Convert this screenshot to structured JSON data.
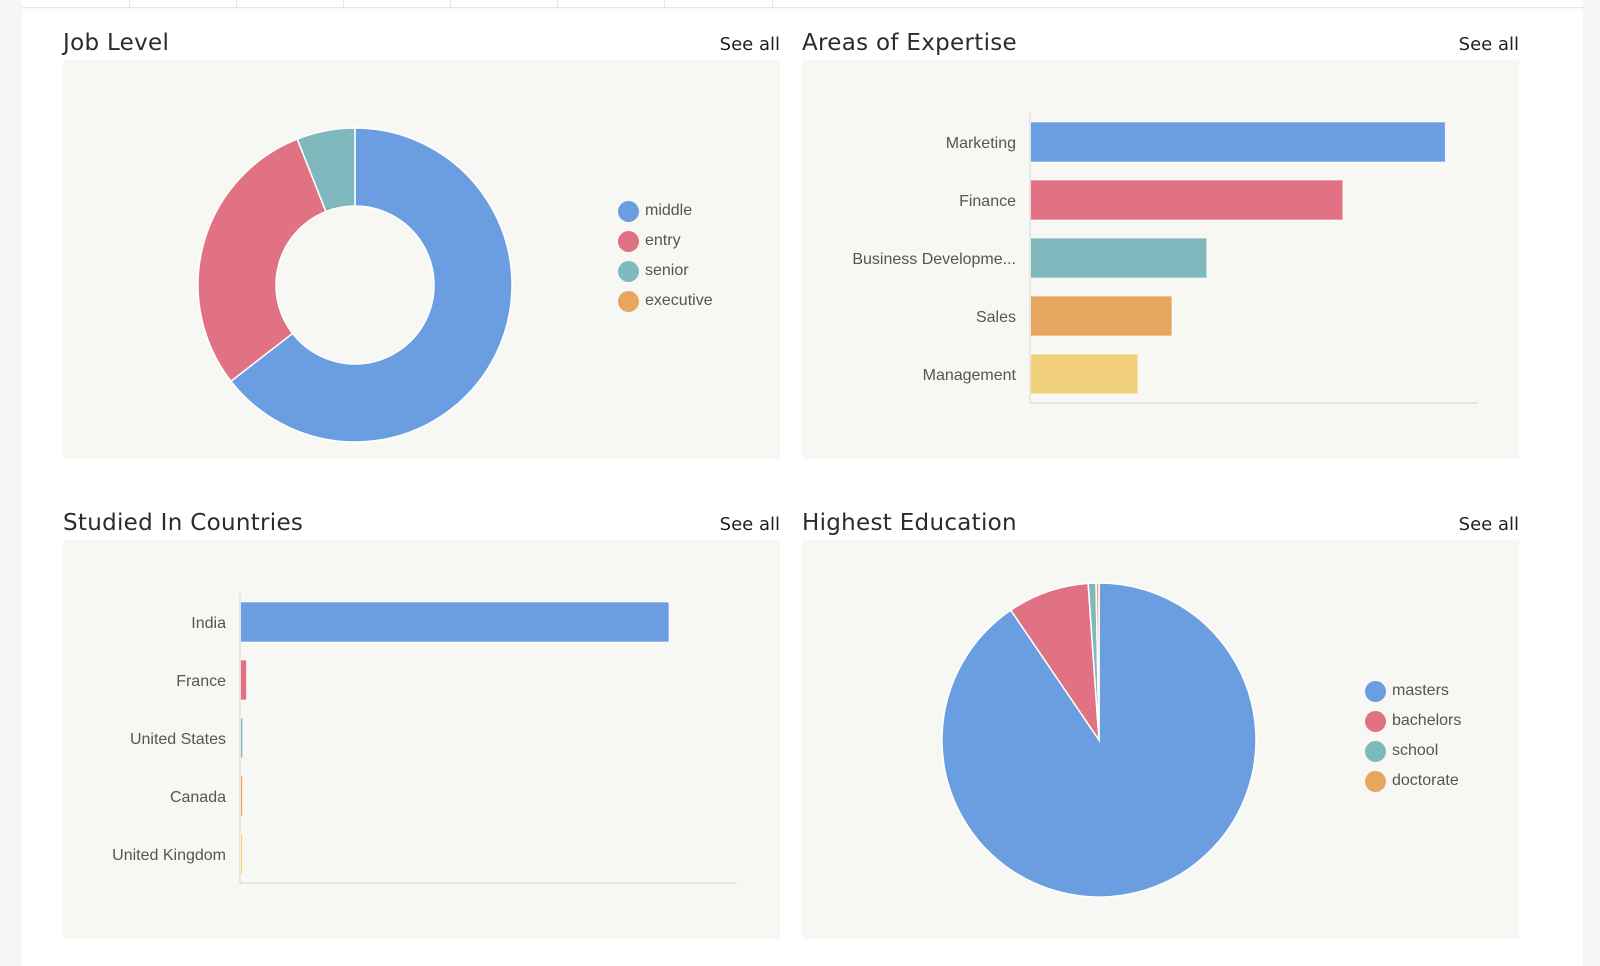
{
  "cards": {
    "job_level": {
      "title": "Job Level",
      "see_all": "See all"
    },
    "expertise": {
      "title": "Areas of Expertise",
      "see_all": "See all"
    },
    "countries": {
      "title": "Studied In Countries",
      "see_all": "See all"
    },
    "education": {
      "title": "Highest Education",
      "see_all": "See all"
    }
  },
  "chart_data": [
    {
      "id": "job_level",
      "type": "pie",
      "donut": true,
      "categories": [
        "middle",
        "entry",
        "senior",
        "executive"
      ],
      "values": [
        64.5,
        29.5,
        6.0,
        0
      ],
      "colors": [
        "#6a9ee0",
        "#e07283",
        "#80b9bd",
        "#e6a660"
      ],
      "legend_position": "right"
    },
    {
      "id": "expertise",
      "type": "bar",
      "orientation": "horizontal",
      "categories": [
        "Marketing",
        "Finance",
        "Business Developme...",
        "Sales",
        "Management"
      ],
      "values": [
        100,
        75.3,
        42.5,
        34.1,
        25.9
      ],
      "colors": [
        "#6a9ee0",
        "#e07283",
        "#80b9bd",
        "#e6a660",
        "#f0d07b"
      ],
      "xlim": [
        0,
        108
      ]
    },
    {
      "id": "countries",
      "type": "bar",
      "orientation": "horizontal",
      "categories": [
        "India",
        "France",
        "United States",
        "Canada",
        "United Kingdom"
      ],
      "values": [
        100,
        1.4,
        0.5,
        0.3,
        0.2
      ],
      "colors": [
        "#6a9ee0",
        "#e07283",
        "#80b9bd",
        "#e6a660",
        "#f0d07b"
      ],
      "xlim": [
        0,
        116
      ]
    },
    {
      "id": "education",
      "type": "pie",
      "donut": false,
      "categories": [
        "masters",
        "bachelors",
        "school",
        "doctorate"
      ],
      "values": [
        90.5,
        8.4,
        0.8,
        0.3
      ],
      "colors": [
        "#6a9ee0",
        "#e07283",
        "#80b9bd",
        "#e6a660"
      ],
      "legend_position": "right"
    }
  ]
}
